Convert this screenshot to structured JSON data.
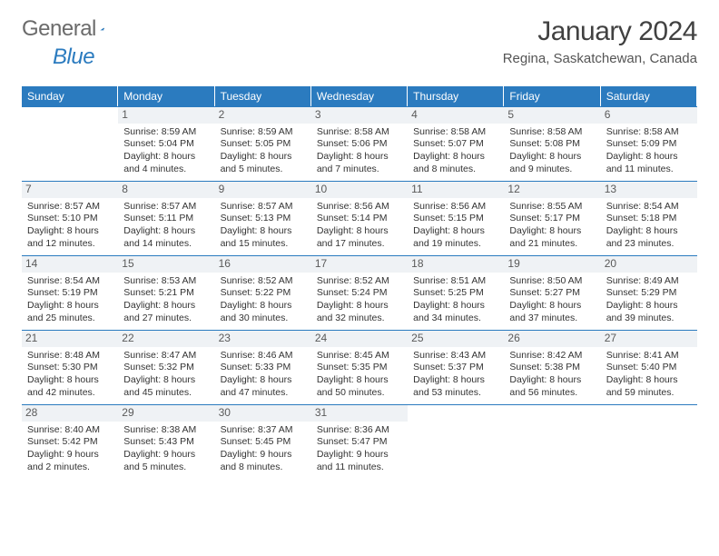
{
  "logo": {
    "word1": "General",
    "word2": "Blue"
  },
  "title": "January 2024",
  "location": "Regina, Saskatchewan, Canada",
  "colors": {
    "header_bar": "#2b7bbf",
    "daynum_bg": "#eff2f5",
    "text": "#333333",
    "logo_gray": "#6b6b6b",
    "logo_blue": "#2b7bbf"
  },
  "weekdays": [
    "Sunday",
    "Monday",
    "Tuesday",
    "Wednesday",
    "Thursday",
    "Friday",
    "Saturday"
  ],
  "first_weekday_index": 1,
  "days": [
    {
      "n": 1,
      "sunrise": "8:59 AM",
      "sunset": "5:04 PM",
      "daylight": "8 hours and 4 minutes."
    },
    {
      "n": 2,
      "sunrise": "8:59 AM",
      "sunset": "5:05 PM",
      "daylight": "8 hours and 5 minutes."
    },
    {
      "n": 3,
      "sunrise": "8:58 AM",
      "sunset": "5:06 PM",
      "daylight": "8 hours and 7 minutes."
    },
    {
      "n": 4,
      "sunrise": "8:58 AM",
      "sunset": "5:07 PM",
      "daylight": "8 hours and 8 minutes."
    },
    {
      "n": 5,
      "sunrise": "8:58 AM",
      "sunset": "5:08 PM",
      "daylight": "8 hours and 9 minutes."
    },
    {
      "n": 6,
      "sunrise": "8:58 AM",
      "sunset": "5:09 PM",
      "daylight": "8 hours and 11 minutes."
    },
    {
      "n": 7,
      "sunrise": "8:57 AM",
      "sunset": "5:10 PM",
      "daylight": "8 hours and 12 minutes."
    },
    {
      "n": 8,
      "sunrise": "8:57 AM",
      "sunset": "5:11 PM",
      "daylight": "8 hours and 14 minutes."
    },
    {
      "n": 9,
      "sunrise": "8:57 AM",
      "sunset": "5:13 PM",
      "daylight": "8 hours and 15 minutes."
    },
    {
      "n": 10,
      "sunrise": "8:56 AM",
      "sunset": "5:14 PM",
      "daylight": "8 hours and 17 minutes."
    },
    {
      "n": 11,
      "sunrise": "8:56 AM",
      "sunset": "5:15 PM",
      "daylight": "8 hours and 19 minutes."
    },
    {
      "n": 12,
      "sunrise": "8:55 AM",
      "sunset": "5:17 PM",
      "daylight": "8 hours and 21 minutes."
    },
    {
      "n": 13,
      "sunrise": "8:54 AM",
      "sunset": "5:18 PM",
      "daylight": "8 hours and 23 minutes."
    },
    {
      "n": 14,
      "sunrise": "8:54 AM",
      "sunset": "5:19 PM",
      "daylight": "8 hours and 25 minutes."
    },
    {
      "n": 15,
      "sunrise": "8:53 AM",
      "sunset": "5:21 PM",
      "daylight": "8 hours and 27 minutes."
    },
    {
      "n": 16,
      "sunrise": "8:52 AM",
      "sunset": "5:22 PM",
      "daylight": "8 hours and 30 minutes."
    },
    {
      "n": 17,
      "sunrise": "8:52 AM",
      "sunset": "5:24 PM",
      "daylight": "8 hours and 32 minutes."
    },
    {
      "n": 18,
      "sunrise": "8:51 AM",
      "sunset": "5:25 PM",
      "daylight": "8 hours and 34 minutes."
    },
    {
      "n": 19,
      "sunrise": "8:50 AM",
      "sunset": "5:27 PM",
      "daylight": "8 hours and 37 minutes."
    },
    {
      "n": 20,
      "sunrise": "8:49 AM",
      "sunset": "5:29 PM",
      "daylight": "8 hours and 39 minutes."
    },
    {
      "n": 21,
      "sunrise": "8:48 AM",
      "sunset": "5:30 PM",
      "daylight": "8 hours and 42 minutes."
    },
    {
      "n": 22,
      "sunrise": "8:47 AM",
      "sunset": "5:32 PM",
      "daylight": "8 hours and 45 minutes."
    },
    {
      "n": 23,
      "sunrise": "8:46 AM",
      "sunset": "5:33 PM",
      "daylight": "8 hours and 47 minutes."
    },
    {
      "n": 24,
      "sunrise": "8:45 AM",
      "sunset": "5:35 PM",
      "daylight": "8 hours and 50 minutes."
    },
    {
      "n": 25,
      "sunrise": "8:43 AM",
      "sunset": "5:37 PM",
      "daylight": "8 hours and 53 minutes."
    },
    {
      "n": 26,
      "sunrise": "8:42 AM",
      "sunset": "5:38 PM",
      "daylight": "8 hours and 56 minutes."
    },
    {
      "n": 27,
      "sunrise": "8:41 AM",
      "sunset": "5:40 PM",
      "daylight": "8 hours and 59 minutes."
    },
    {
      "n": 28,
      "sunrise": "8:40 AM",
      "sunset": "5:42 PM",
      "daylight": "9 hours and 2 minutes."
    },
    {
      "n": 29,
      "sunrise": "8:38 AM",
      "sunset": "5:43 PM",
      "daylight": "9 hours and 5 minutes."
    },
    {
      "n": 30,
      "sunrise": "8:37 AM",
      "sunset": "5:45 PM",
      "daylight": "9 hours and 8 minutes."
    },
    {
      "n": 31,
      "sunrise": "8:36 AM",
      "sunset": "5:47 PM",
      "daylight": "9 hours and 11 minutes."
    }
  ],
  "labels": {
    "sunrise": "Sunrise:",
    "sunset": "Sunset:",
    "daylight": "Daylight:"
  }
}
